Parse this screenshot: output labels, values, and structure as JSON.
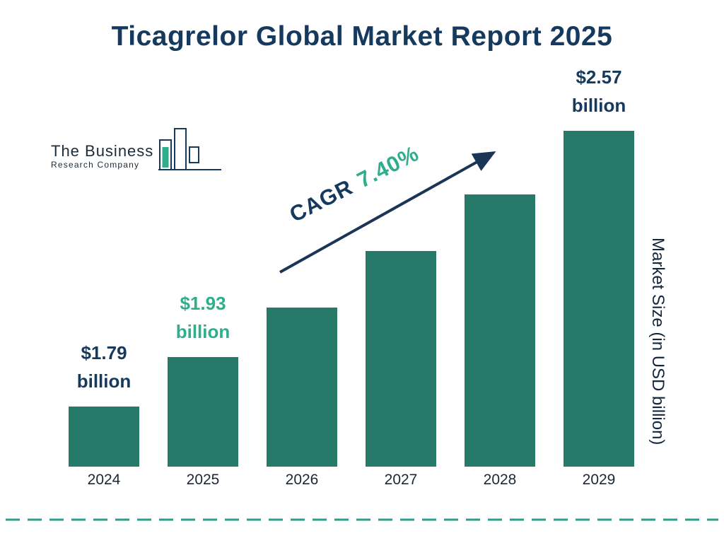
{
  "title": "Ticagrelor Global Market Report 2025",
  "logo": {
    "line1": "The Business",
    "line2": "Research Company"
  },
  "cagr": {
    "prefix": "CAGR",
    "value": "7.40%"
  },
  "y_axis_label": "Market Size (in USD billion)",
  "chart_data": {
    "type": "bar",
    "title": "Ticagrelor Global Market Report 2025",
    "categories": [
      "2024",
      "2025",
      "2026",
      "2027",
      "2028",
      "2029"
    ],
    "values": [
      1.79,
      1.93,
      2.07,
      2.23,
      2.39,
      2.57
    ],
    "value_labels": [
      {
        "index": 0,
        "line1": "$1.79",
        "line2": "billion",
        "color": "navy"
      },
      {
        "index": 1,
        "line1": "$1.93",
        "line2": "billion",
        "color": "green"
      },
      {
        "index": 5,
        "line1": "$2.57",
        "line2": "billion",
        "color": "navy"
      }
    ],
    "ylabel": "Market Size (in USD billion)",
    "annotation": "CAGR 7.40%",
    "legend": null,
    "grid": false,
    "note": "bars drawn with non-zero baseline; 2026-2028 values estimated from 7.40% CAGR"
  },
  "colors": {
    "navy": "#16395E",
    "green": "#2FAE8C",
    "bar": "#27796A",
    "dashed_line": "#2A9D8F",
    "arrow": "#1B3556"
  }
}
